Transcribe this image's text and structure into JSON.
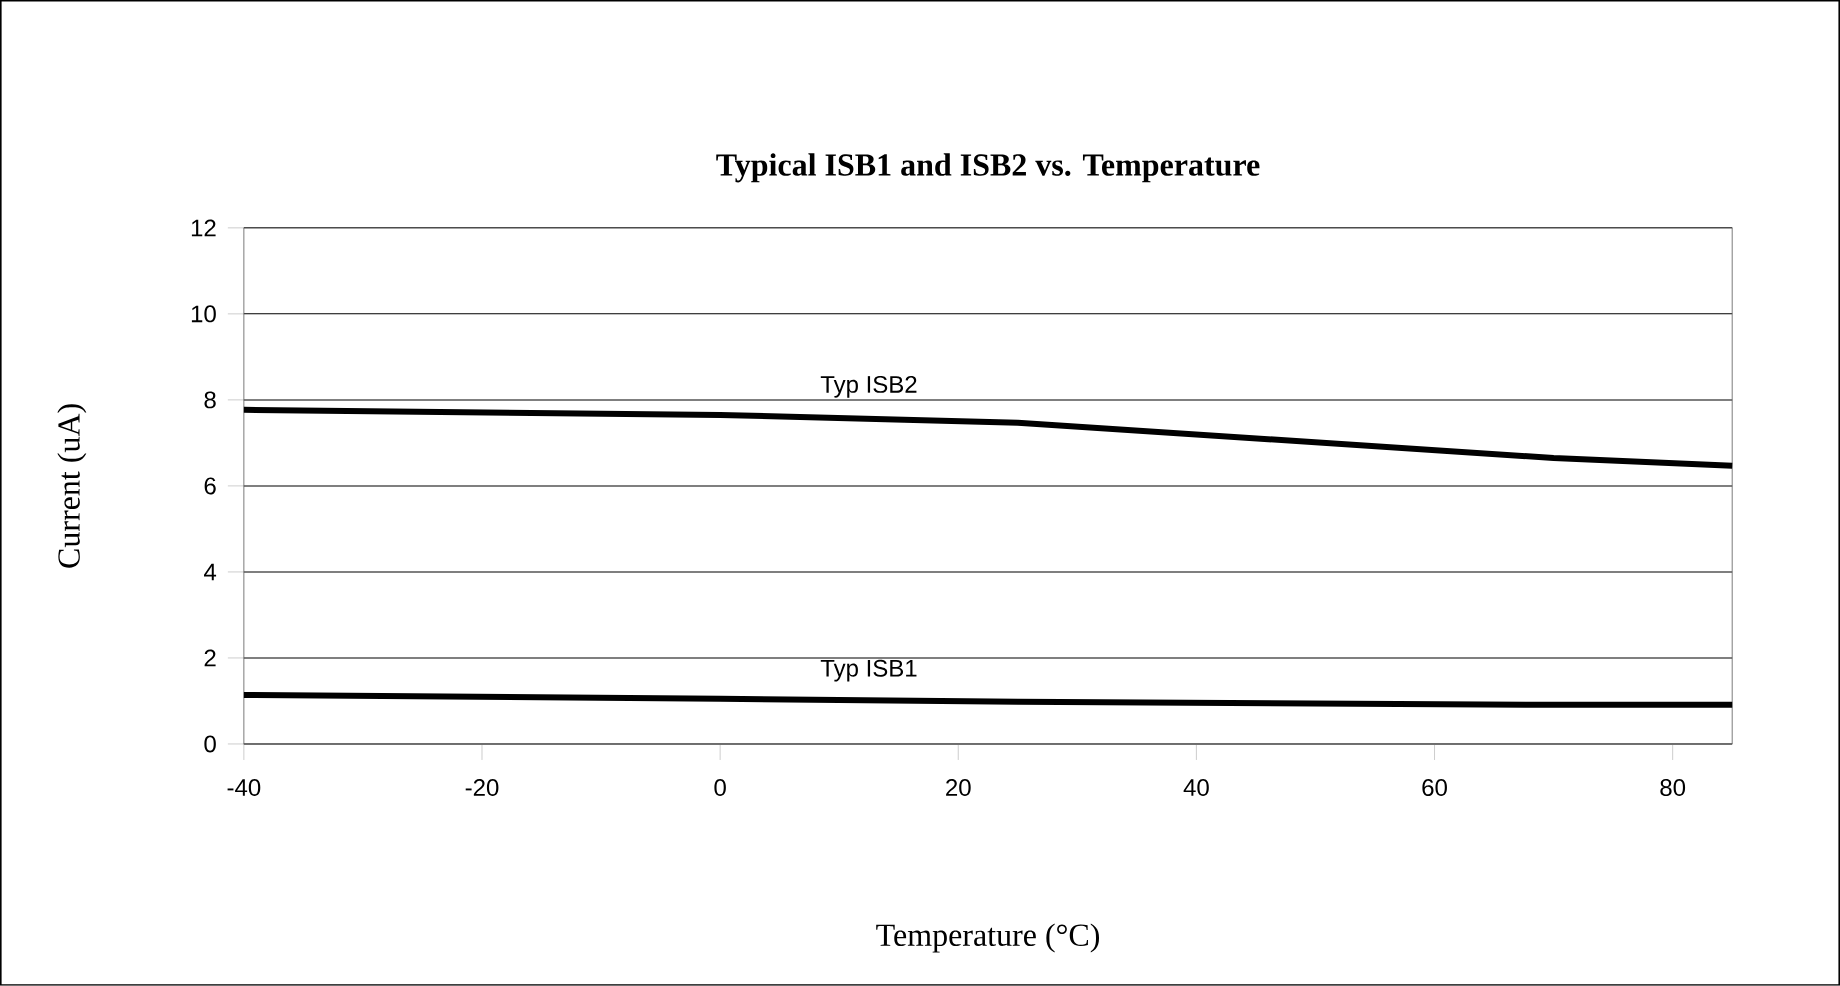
{
  "chart_data": {
    "type": "line",
    "title": "Typical ISB1 and ISB2 vs. Temperature",
    "xlabel": "Temperature (°C)",
    "ylabel": "Current (uA)",
    "x": [
      -40,
      0,
      25,
      70,
      85
    ],
    "series": [
      {
        "name": "Typ ISB1",
        "color": "#000000",
        "values": [
          1.14,
          1.05,
          0.98,
          0.91,
          0.91
        ]
      },
      {
        "name": "Typ ISB2",
        "color": "#000000",
        "values": [
          7.77,
          7.65,
          7.47,
          6.65,
          6.47
        ]
      }
    ],
    "xlim": [
      -40,
      85
    ],
    "xticks": [
      -40,
      -20,
      0,
      20,
      40,
      60,
      80
    ],
    "ylim": [
      0,
      12
    ],
    "yticks": [
      0,
      2,
      4,
      6,
      8,
      10,
      12
    ],
    "grid": "y",
    "marker": "none",
    "line_style": "solid"
  }
}
